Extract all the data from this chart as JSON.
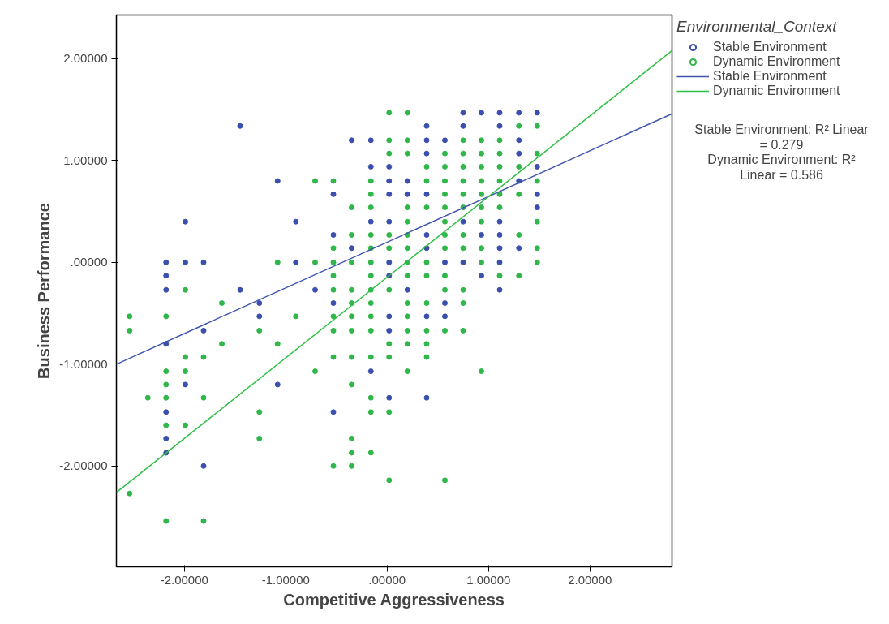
{
  "chart_data": {
    "type": "scatter",
    "xlabel": "Competitive Aggressiveness",
    "ylabel": "Business Performance",
    "legend_title": "Environmental_Context",
    "xlim": [
      -2.67,
      2.81
    ],
    "ylim": [
      -2.99,
      2.43
    ],
    "xticks": [
      {
        "value": -2,
        "label": "-2.00000"
      },
      {
        "value": -1,
        "label": "-1.00000"
      },
      {
        "value": 0,
        "label": ".00000"
      },
      {
        "value": 1,
        "label": "1.00000"
      },
      {
        "value": 2,
        "label": "2.00000"
      }
    ],
    "yticks": [
      {
        "value": -2,
        "label": "-2.00000"
      },
      {
        "value": -1,
        "label": "-1.00000"
      },
      {
        "value": 0,
        "label": ".00000"
      },
      {
        "value": 1,
        "label": "1.00000"
      },
      {
        "value": 2,
        "label": "2.00000"
      }
    ],
    "grid": false,
    "legend": "right",
    "series": [
      {
        "name": "Stable Environment",
        "type": "scatter",
        "marker": "circle",
        "color": "#3b50ae",
        "x": [
          -2.18,
          -2.18,
          -2.18,
          -2.18,
          -2.18,
          -2.18,
          -2.18,
          -1.99,
          -1.99,
          -1.99,
          -1.81,
          -1.81,
          -1.81,
          -1.45,
          -1.45,
          -1.26,
          -1.26,
          -1.08,
          -1.08,
          -0.9,
          -0.9,
          -0.71,
          -0.53,
          -0.53,
          -0.53,
          -0.53,
          -0.35,
          -0.35,
          -0.16,
          -0.16,
          -0.16,
          -0.16,
          0.02,
          0.02,
          0.02,
          0.02,
          0.02,
          0.02,
          0.02,
          0.02,
          0.02,
          0.2,
          0.2,
          0.2,
          0.39,
          0.39,
          0.39,
          0.39,
          0.39,
          0.39,
          0.39,
          0.39,
          0.57,
          0.57,
          0.57,
          0.57,
          0.75,
          0.75,
          0.75,
          0.75,
          0.93,
          0.93,
          0.93,
          1.11,
          1.11,
          1.11,
          1.11,
          1.11,
          1.11,
          1.11,
          1.3,
          1.3,
          1.3,
          1.3,
          1.3,
          1.48,
          1.48,
          1.48,
          1.48
        ],
        "values": [
          0.0,
          -0.13,
          -0.27,
          -0.8,
          -1.47,
          -1.73,
          -1.87,
          0.4,
          0.0,
          -1.2,
          0.0,
          -0.67,
          -2.0,
          1.34,
          -0.27,
          -0.4,
          -0.53,
          0.8,
          -1.2,
          0.4,
          0.0,
          -0.27,
          0.67,
          0.27,
          -0.4,
          -1.47,
          1.2,
          0.14,
          1.2,
          0.94,
          0.4,
          -1.07,
          0.94,
          0.8,
          0.67,
          0.4,
          0.0,
          -0.13,
          -0.53,
          -0.67,
          -1.33,
          0.8,
          0.67,
          -0.27,
          1.34,
          1.2,
          1.07,
          0.67,
          0.27,
          0.14,
          -0.53,
          -1.33,
          1.2,
          0.0,
          -0.4,
          -0.53,
          1.47,
          1.34,
          0.4,
          0.0,
          1.47,
          0.27,
          -0.13,
          1.47,
          1.34,
          0.4,
          0.27,
          0.14,
          0.0,
          -0.27,
          1.47,
          1.2,
          1.07,
          0.8,
          0.14,
          1.47,
          0.94,
          0.67,
          0.54
        ]
      },
      {
        "name": "Dynamic Environment",
        "type": "scatter",
        "marker": "circle",
        "color": "#2fb74a",
        "x": [
          -2.54,
          -2.54,
          -2.54,
          -2.36,
          -2.18,
          -2.18,
          -2.18,
          -2.18,
          -2.18,
          -2.18,
          -1.99,
          -1.99,
          -1.99,
          -1.99,
          -1.81,
          -1.81,
          -1.81,
          -1.63,
          -1.63,
          -1.26,
          -1.26,
          -1.26,
          -1.08,
          -1.08,
          -0.9,
          -0.71,
          -0.71,
          -0.71,
          -0.53,
          -0.53,
          -0.53,
          -0.53,
          -0.53,
          -0.53,
          -0.53,
          -0.53,
          -0.53,
          -0.35,
          -0.35,
          -0.35,
          -0.35,
          -0.35,
          -0.35,
          -0.35,
          -0.35,
          -0.35,
          -0.35,
          -0.35,
          -0.35,
          -0.16,
          -0.16,
          -0.16,
          -0.16,
          -0.16,
          -0.16,
          -0.16,
          -0.16,
          -0.16,
          -0.16,
          -0.16,
          -0.16,
          -0.16,
          -0.16,
          -0.16,
          0.02,
          0.02,
          0.02,
          0.02,
          0.02,
          0.02,
          0.02,
          0.02,
          0.02,
          0.02,
          0.2,
          0.2,
          0.2,
          0.2,
          0.2,
          0.2,
          0.2,
          0.2,
          0.2,
          0.2,
          0.2,
          0.2,
          0.2,
          0.2,
          0.39,
          0.39,
          0.39,
          0.39,
          0.39,
          0.39,
          0.39,
          0.39,
          0.39,
          0.57,
          0.57,
          0.57,
          0.57,
          0.57,
          0.57,
          0.57,
          0.57,
          0.57,
          0.57,
          0.57,
          0.57,
          0.75,
          0.75,
          0.75,
          0.75,
          0.75,
          0.75,
          0.75,
          0.75,
          0.75,
          0.75,
          0.75,
          0.93,
          0.93,
          0.93,
          0.93,
          0.93,
          0.93,
          0.93,
          0.93,
          0.93,
          0.93,
          1.11,
          1.11,
          1.11,
          1.11,
          1.11,
          1.11,
          1.11,
          1.3,
          1.3,
          1.3,
          1.3,
          1.3,
          1.48,
          1.48,
          1.48,
          1.48,
          1.48,
          1.48
        ],
        "values": [
          -0.53,
          -0.67,
          -2.27,
          -1.33,
          -0.53,
          -1.07,
          -1.2,
          -1.33,
          -1.6,
          -2.54,
          -0.27,
          -0.93,
          -1.07,
          -1.6,
          -0.93,
          -1.33,
          -2.54,
          -0.4,
          -0.8,
          -0.67,
          -1.47,
          -1.73,
          0.0,
          -0.8,
          -0.53,
          0.8,
          0.0,
          -1.07,
          0.8,
          0.14,
          0.0,
          -0.13,
          -0.27,
          -0.53,
          -0.67,
          -0.93,
          -2.0,
          0.54,
          0.27,
          0.0,
          -0.27,
          -0.4,
          -0.53,
          -0.67,
          -0.93,
          -1.2,
          -1.73,
          -1.87,
          -2.0,
          0.8,
          0.67,
          0.54,
          0.27,
          0.14,
          0.0,
          -0.13,
          -0.27,
          -0.4,
          -0.53,
          -0.67,
          -0.93,
          -1.33,
          -1.47,
          -1.87,
          1.47,
          1.2,
          1.07,
          0.27,
          0.14,
          -0.27,
          -0.8,
          -0.93,
          -1.47,
          -2.14,
          1.47,
          1.2,
          1.07,
          0.54,
          0.4,
          0.27,
          0.14,
          0.0,
          -0.13,
          -0.4,
          -0.53,
          -0.67,
          -0.8,
          -1.07,
          0.94,
          0.8,
          0.54,
          0.0,
          -0.13,
          -0.4,
          -0.67,
          -0.8,
          -0.93,
          1.07,
          0.94,
          0.8,
          0.67,
          0.54,
          0.4,
          0.27,
          0.14,
          -0.13,
          -0.27,
          -0.67,
          -2.14,
          1.2,
          1.07,
          0.94,
          0.8,
          0.67,
          0.54,
          0.27,
          0.14,
          -0.27,
          -0.4,
          -0.67,
          1.2,
          1.07,
          0.94,
          0.8,
          0.67,
          0.54,
          0.4,
          0.14,
          0.0,
          -1.07,
          1.2,
          1.07,
          0.94,
          0.8,
          0.67,
          0.54,
          -0.13,
          1.34,
          0.94,
          0.67,
          0.27,
          -0.13,
          1.34,
          1.07,
          0.8,
          0.4,
          0.14,
          0.0
        ]
      },
      {
        "name": "Stable Environment",
        "type": "line",
        "marker": "none",
        "color": "#4055b0",
        "x": [
          -2.67,
          2.81
        ],
        "values": [
          -1.0,
          1.46
        ]
      },
      {
        "name": "Dynamic Environment",
        "type": "line",
        "marker": "none",
        "color": "#2ec045",
        "x": [
          -2.67,
          2.81
        ],
        "values": [
          -2.26,
          2.08
        ]
      }
    ],
    "annotations": [
      "Stable Environment: R² Linear = 0.279",
      "Dynamic Environment: R² Linear = 0.586"
    ]
  }
}
